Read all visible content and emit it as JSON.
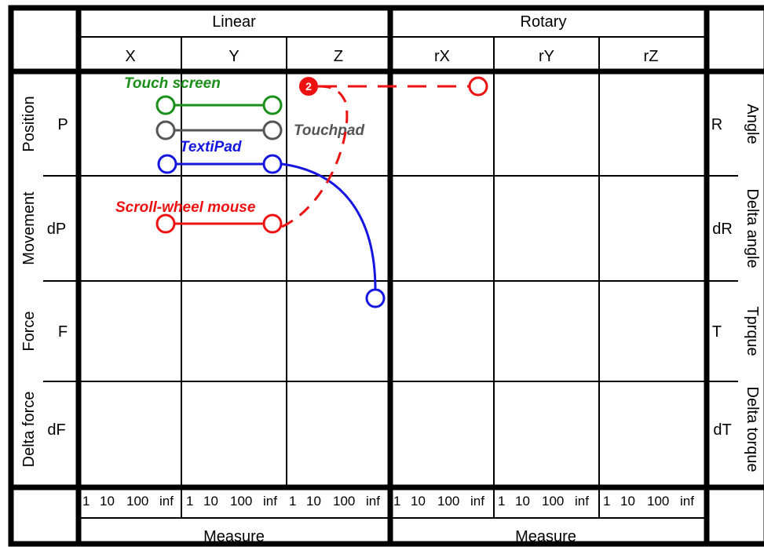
{
  "headers": {
    "linear": "Linear",
    "rotary": "Rotary",
    "axes": [
      "X",
      "Y",
      "Z",
      "rX",
      "rY",
      "rZ"
    ],
    "measure_left": "Measure",
    "measure_right": "Measure"
  },
  "rows": [
    {
      "name": "Position",
      "left_code": "P",
      "right_code": "R",
      "right_name": "Angle"
    },
    {
      "name": "Movement",
      "left_code": "dP",
      "right_code": "dR",
      "right_name": "Delta angle"
    },
    {
      "name": "Force",
      "left_code": "F",
      "right_code": "T",
      "right_name": "Tprque"
    },
    {
      "name": "Delta force",
      "left_code": "dF",
      "right_code": "dT",
      "right_name": "Delta torque"
    }
  ],
  "ticks": [
    "1",
    "10",
    "100",
    "inf"
  ],
  "devices": [
    {
      "label": "Touch screen",
      "color": "#1a8f1a"
    },
    {
      "label": "Touchpad",
      "color": "#555555"
    },
    {
      "label": "TextiPad",
      "color": "#1515e0"
    },
    {
      "label": "Scroll-wheel mouse",
      "color": "#ee1111",
      "badge": "2"
    }
  ]
}
